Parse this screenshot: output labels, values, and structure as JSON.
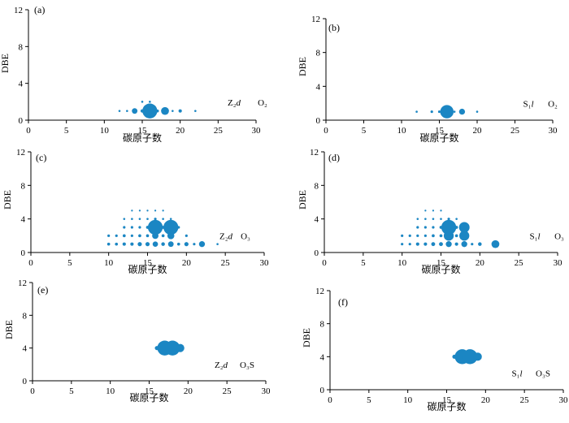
{
  "chart_data": [
    {
      "type": "scatter",
      "panel_label": "(a)",
      "xlabel": "碳原子数",
      "ylabel": "DBE",
      "xlim": [
        0,
        30
      ],
      "ylim": [
        0,
        12
      ],
      "xticks": [
        "0",
        "5",
        "10",
        "15",
        "20",
        "25",
        "30"
      ],
      "yticks": [
        "0",
        "4",
        "8",
        "12"
      ],
      "annotation_formation": "Z₂d",
      "annotation_class": "O₂",
      "points": [
        {
          "x": 12,
          "y": 1,
          "size": 0.2
        },
        {
          "x": 13,
          "y": 1,
          "size": 0.2
        },
        {
          "x": 14,
          "y": 1,
          "size": 1.4
        },
        {
          "x": 15,
          "y": 1,
          "size": 0.5
        },
        {
          "x": 16,
          "y": 1,
          "size": 10
        },
        {
          "x": 17,
          "y": 1,
          "size": 0.4
        },
        {
          "x": 18,
          "y": 1,
          "size": 2.8
        },
        {
          "x": 19,
          "y": 1,
          "size": 0.2
        },
        {
          "x": 20,
          "y": 1,
          "size": 0.5
        },
        {
          "x": 22,
          "y": 1,
          "size": 0.2
        },
        {
          "x": 15,
          "y": 2,
          "size": 0.2
        },
        {
          "x": 16,
          "y": 2,
          "size": 0.2
        }
      ]
    },
    {
      "type": "scatter",
      "panel_label": "(b)",
      "xlabel": "碳原子数",
      "ylabel": "DBE",
      "xlim": [
        0,
        30
      ],
      "ylim": [
        0,
        12
      ],
      "xticks": [
        "0",
        "5",
        "10",
        "15",
        "20",
        "25",
        "30"
      ],
      "yticks": [
        "0",
        "4",
        "8",
        "12"
      ],
      "annotation_formation": "S₁l",
      "annotation_class": "O₂",
      "points": [
        {
          "x": 12,
          "y": 1,
          "size": 0.2
        },
        {
          "x": 14,
          "y": 1,
          "size": 0.3
        },
        {
          "x": 15,
          "y": 1,
          "size": 0.3
        },
        {
          "x": 16,
          "y": 1,
          "size": 8
        },
        {
          "x": 17,
          "y": 1,
          "size": 0.2
        },
        {
          "x": 18,
          "y": 1,
          "size": 1.6
        },
        {
          "x": 20,
          "y": 1,
          "size": 0.2
        }
      ]
    },
    {
      "type": "scatter",
      "panel_label": "(c)",
      "xlabel": "碳原子数",
      "ylabel": "DBE",
      "xlim": [
        0,
        30
      ],
      "ylim": [
        0,
        12
      ],
      "xticks": [
        "0",
        "5",
        "10",
        "15",
        "20",
        "25",
        "30"
      ],
      "yticks": [
        "0",
        "4",
        "8",
        "12"
      ],
      "annotation_formation": "Z₂d",
      "annotation_class": "O₃",
      "points": [
        {
          "x": 10,
          "y": 1,
          "size": 0.4
        },
        {
          "x": 11,
          "y": 1,
          "size": 0.4
        },
        {
          "x": 12,
          "y": 1,
          "size": 0.5
        },
        {
          "x": 13,
          "y": 1,
          "size": 0.5
        },
        {
          "x": 14,
          "y": 1,
          "size": 0.8
        },
        {
          "x": 15,
          "y": 1,
          "size": 0.8
        },
        {
          "x": 16,
          "y": 1,
          "size": 1.3
        },
        {
          "x": 17,
          "y": 1,
          "size": 0.6
        },
        {
          "x": 18,
          "y": 1,
          "size": 1.4
        },
        {
          "x": 19,
          "y": 1,
          "size": 0.4
        },
        {
          "x": 20,
          "y": 1,
          "size": 0.8
        },
        {
          "x": 21,
          "y": 1,
          "size": 0.3
        },
        {
          "x": 22,
          "y": 1,
          "size": 1.6
        },
        {
          "x": 24,
          "y": 1,
          "size": 0.2
        },
        {
          "x": 10,
          "y": 2,
          "size": 0.3
        },
        {
          "x": 11,
          "y": 2,
          "size": 0.3
        },
        {
          "x": 12,
          "y": 2,
          "size": 0.4
        },
        {
          "x": 13,
          "y": 2,
          "size": 0.3
        },
        {
          "x": 14,
          "y": 2,
          "size": 0.4
        },
        {
          "x": 15,
          "y": 2,
          "size": 0.4
        },
        {
          "x": 16,
          "y": 2,
          "size": 1.8
        },
        {
          "x": 17,
          "y": 2,
          "size": 0.4
        },
        {
          "x": 18,
          "y": 2,
          "size": 2.2
        },
        {
          "x": 20,
          "y": 2,
          "size": 0.3
        },
        {
          "x": 12,
          "y": 3,
          "size": 0.3
        },
        {
          "x": 13,
          "y": 3,
          "size": 0.3
        },
        {
          "x": 14,
          "y": 3,
          "size": 0.3
        },
        {
          "x": 15,
          "y": 3,
          "size": 0.4
        },
        {
          "x": 16,
          "y": 3,
          "size": 10
        },
        {
          "x": 17,
          "y": 3,
          "size": 0.4
        },
        {
          "x": 18,
          "y": 3,
          "size": 10
        },
        {
          "x": 19,
          "y": 3,
          "size": 0.3
        },
        {
          "x": 12,
          "y": 4,
          "size": 0.2
        },
        {
          "x": 13,
          "y": 4,
          "size": 0.2
        },
        {
          "x": 14,
          "y": 4,
          "size": 0.2
        },
        {
          "x": 15,
          "y": 4,
          "size": 0.2
        },
        {
          "x": 16,
          "y": 4,
          "size": 0.3
        },
        {
          "x": 17,
          "y": 4,
          "size": 0.2
        },
        {
          "x": 18,
          "y": 4,
          "size": 0.2
        },
        {
          "x": 13,
          "y": 5,
          "size": 0.15
        },
        {
          "x": 14,
          "y": 5,
          "size": 0.15
        },
        {
          "x": 15,
          "y": 5,
          "size": 0.15
        },
        {
          "x": 16,
          "y": 5,
          "size": 0.15
        },
        {
          "x": 17,
          "y": 5,
          "size": 0.15
        }
      ]
    },
    {
      "type": "scatter",
      "panel_label": "(d)",
      "xlabel": "碳原子数",
      "ylabel": "DBE",
      "xlim": [
        0,
        30
      ],
      "ylim": [
        0,
        12
      ],
      "xticks": [
        "0",
        "5",
        "10",
        "15",
        "20",
        "25",
        "30"
      ],
      "yticks": [
        "0",
        "4",
        "8",
        "12"
      ],
      "annotation_formation": "S₁l",
      "annotation_class": "O₃",
      "points": [
        {
          "x": 10,
          "y": 1,
          "size": 0.3
        },
        {
          "x": 11,
          "y": 1,
          "size": 0.3
        },
        {
          "x": 12,
          "y": 1,
          "size": 0.5
        },
        {
          "x": 13,
          "y": 1,
          "size": 0.5
        },
        {
          "x": 14,
          "y": 1,
          "size": 0.7
        },
        {
          "x": 15,
          "y": 1,
          "size": 0.7
        },
        {
          "x": 16,
          "y": 1,
          "size": 1.6
        },
        {
          "x": 17,
          "y": 1,
          "size": 0.5
        },
        {
          "x": 18,
          "y": 1,
          "size": 1.6
        },
        {
          "x": 19,
          "y": 1,
          "size": 0.3
        },
        {
          "x": 20,
          "y": 1,
          "size": 0.6
        },
        {
          "x": 22,
          "y": 1,
          "size": 2.8
        },
        {
          "x": 10,
          "y": 2,
          "size": 0.3
        },
        {
          "x": 11,
          "y": 2,
          "size": 0.3
        },
        {
          "x": 12,
          "y": 2,
          "size": 0.3
        },
        {
          "x": 13,
          "y": 2,
          "size": 0.3
        },
        {
          "x": 14,
          "y": 2,
          "size": 0.4
        },
        {
          "x": 15,
          "y": 2,
          "size": 0.4
        },
        {
          "x": 16,
          "y": 2,
          "size": 4.5
        },
        {
          "x": 17,
          "y": 2,
          "size": 0.4
        },
        {
          "x": 18,
          "y": 2,
          "size": 4.5
        },
        {
          "x": 12,
          "y": 3,
          "size": 0.3
        },
        {
          "x": 13,
          "y": 3,
          "size": 0.3
        },
        {
          "x": 14,
          "y": 3,
          "size": 0.3
        },
        {
          "x": 15,
          "y": 3,
          "size": 0.4
        },
        {
          "x": 16,
          "y": 3,
          "size": 10
        },
        {
          "x": 17,
          "y": 3,
          "size": 0.4
        },
        {
          "x": 18,
          "y": 3,
          "size": 5
        },
        {
          "x": 12,
          "y": 4,
          "size": 0.2
        },
        {
          "x": 13,
          "y": 4,
          "size": 0.2
        },
        {
          "x": 14,
          "y": 4,
          "size": 0.2
        },
        {
          "x": 15,
          "y": 4,
          "size": 0.2
        },
        {
          "x": 16,
          "y": 4,
          "size": 0.3
        },
        {
          "x": 17,
          "y": 4,
          "size": 0.2
        },
        {
          "x": 13,
          "y": 5,
          "size": 0.15
        },
        {
          "x": 14,
          "y": 5,
          "size": 0.15
        },
        {
          "x": 15,
          "y": 5,
          "size": 0.15
        }
      ]
    },
    {
      "type": "scatter",
      "panel_label": "(e)",
      "xlabel": "碳原子数",
      "ylabel": "DBE",
      "xlim": [
        0,
        30
      ],
      "ylim": [
        0,
        12
      ],
      "xticks": [
        "0",
        "5",
        "10",
        "15",
        "20",
        "25",
        "30"
      ],
      "yticks": [
        "0",
        "4",
        "8",
        "12"
      ],
      "annotation_formation": "Z₂d",
      "annotation_class": "O₃S",
      "points": [
        {
          "x": 16,
          "y": 4,
          "size": 0.8
        },
        {
          "x": 17,
          "y": 4,
          "size": 10
        },
        {
          "x": 18,
          "y": 4,
          "size": 10
        },
        {
          "x": 19,
          "y": 4,
          "size": 3
        }
      ]
    },
    {
      "type": "scatter",
      "panel_label": "(f)",
      "xlabel": "碳原子数",
      "ylabel": "DBE",
      "xlim": [
        0,
        30
      ],
      "ylim": [
        0,
        12
      ],
      "xticks": [
        "0",
        "5",
        "10",
        "15",
        "20",
        "25",
        "30"
      ],
      "yticks": [
        "0",
        "4",
        "8",
        "12"
      ],
      "annotation_formation": "S₁l",
      "annotation_class": "O₃S",
      "points": [
        {
          "x": 16,
          "y": 4,
          "size": 0.8
        },
        {
          "x": 17,
          "y": 4,
          "size": 10
        },
        {
          "x": 18,
          "y": 4,
          "size": 10
        },
        {
          "x": 19,
          "y": 4,
          "size": 3
        }
      ]
    }
  ],
  "colors": {
    "bubble": "#1b86c3",
    "axis": "#000000"
  }
}
